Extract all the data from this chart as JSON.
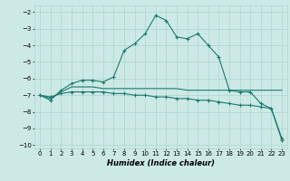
{
  "xlabel": "Humidex (Indice chaleur)",
  "ylabel": "",
  "bg_color": "#cce9e5",
  "grid_color": "#add4cf",
  "line_color": "#1a7a6e",
  "xlim": [
    -0.5,
    23.5
  ],
  "ylim": [
    -10.2,
    -1.6
  ],
  "yticks": [
    -10,
    -9,
    -8,
    -7,
    -6,
    -5,
    -4,
    -3,
    -2
  ],
  "xticks": [
    0,
    1,
    2,
    3,
    4,
    5,
    6,
    7,
    8,
    9,
    10,
    11,
    12,
    13,
    14,
    15,
    16,
    17,
    18,
    19,
    20,
    21,
    22,
    23
  ],
  "series1_x": [
    0,
    1,
    2,
    3,
    4,
    5,
    6,
    7,
    8,
    9,
    10,
    11,
    12,
    13,
    14,
    15,
    16,
    17,
    18,
    19,
    20,
    21,
    22,
    23
  ],
  "series1_y": [
    -7.0,
    -7.3,
    -6.7,
    -6.3,
    -6.1,
    -6.1,
    -6.2,
    -5.9,
    -4.3,
    -3.9,
    -3.3,
    -2.2,
    -2.5,
    -3.5,
    -3.6,
    -3.3,
    -4.0,
    -4.7,
    -6.7,
    -6.8,
    -6.8,
    -7.5,
    -7.8,
    -9.6
  ],
  "series2_x": [
    0,
    1,
    2,
    3,
    4,
    5,
    6,
    7,
    8,
    9,
    10,
    11,
    12,
    13,
    14,
    15,
    16,
    17,
    18,
    19,
    20,
    21,
    22,
    23
  ],
  "series2_y": [
    -7.0,
    -7.2,
    -6.8,
    -6.5,
    -6.5,
    -6.5,
    -6.6,
    -6.6,
    -6.6,
    -6.6,
    -6.6,
    -6.6,
    -6.6,
    -6.6,
    -6.7,
    -6.7,
    -6.7,
    -6.7,
    -6.7,
    -6.7,
    -6.7,
    -6.7,
    -6.7,
    -6.7
  ],
  "series3_x": [
    0,
    1,
    2,
    3,
    4,
    5,
    6,
    7,
    8,
    9,
    10,
    11,
    12,
    13,
    14,
    15,
    16,
    17,
    18,
    19,
    20,
    21,
    22,
    23
  ],
  "series3_y": [
    -7.0,
    -7.1,
    -6.9,
    -6.8,
    -6.8,
    -6.8,
    -6.8,
    -6.9,
    -6.9,
    -7.0,
    -7.0,
    -7.1,
    -7.1,
    -7.2,
    -7.2,
    -7.3,
    -7.3,
    -7.4,
    -7.5,
    -7.6,
    -7.6,
    -7.7,
    -7.8,
    -9.7
  ]
}
